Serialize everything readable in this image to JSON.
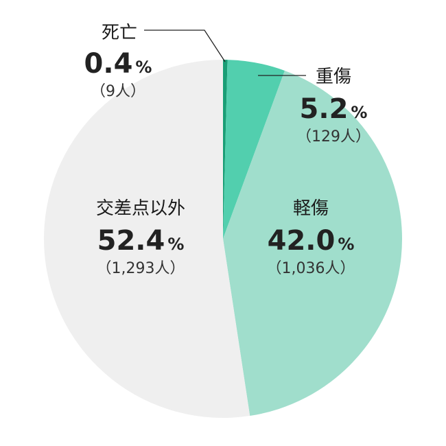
{
  "chart_data": {
    "type": "pie",
    "slices": [
      {
        "label": "死亡",
        "percent": 0.4,
        "percent_text": "0.4",
        "count_text": "（9人）",
        "color": "#1a9e76"
      },
      {
        "label": "重傷",
        "percent": 5.2,
        "percent_text": "5.2",
        "count_text": "（129人）",
        "color": "#52cfae"
      },
      {
        "label": "軽傷",
        "percent": 42.0,
        "percent_text": "42.0",
        "count_text": "（1,036人）",
        "color": "#a0decc"
      },
      {
        "label": "交差点以外",
        "percent": 52.4,
        "percent_text": "52.4",
        "count_text": "（1,293人）",
        "color": "#efefef"
      }
    ],
    "percent_sign": "%"
  }
}
